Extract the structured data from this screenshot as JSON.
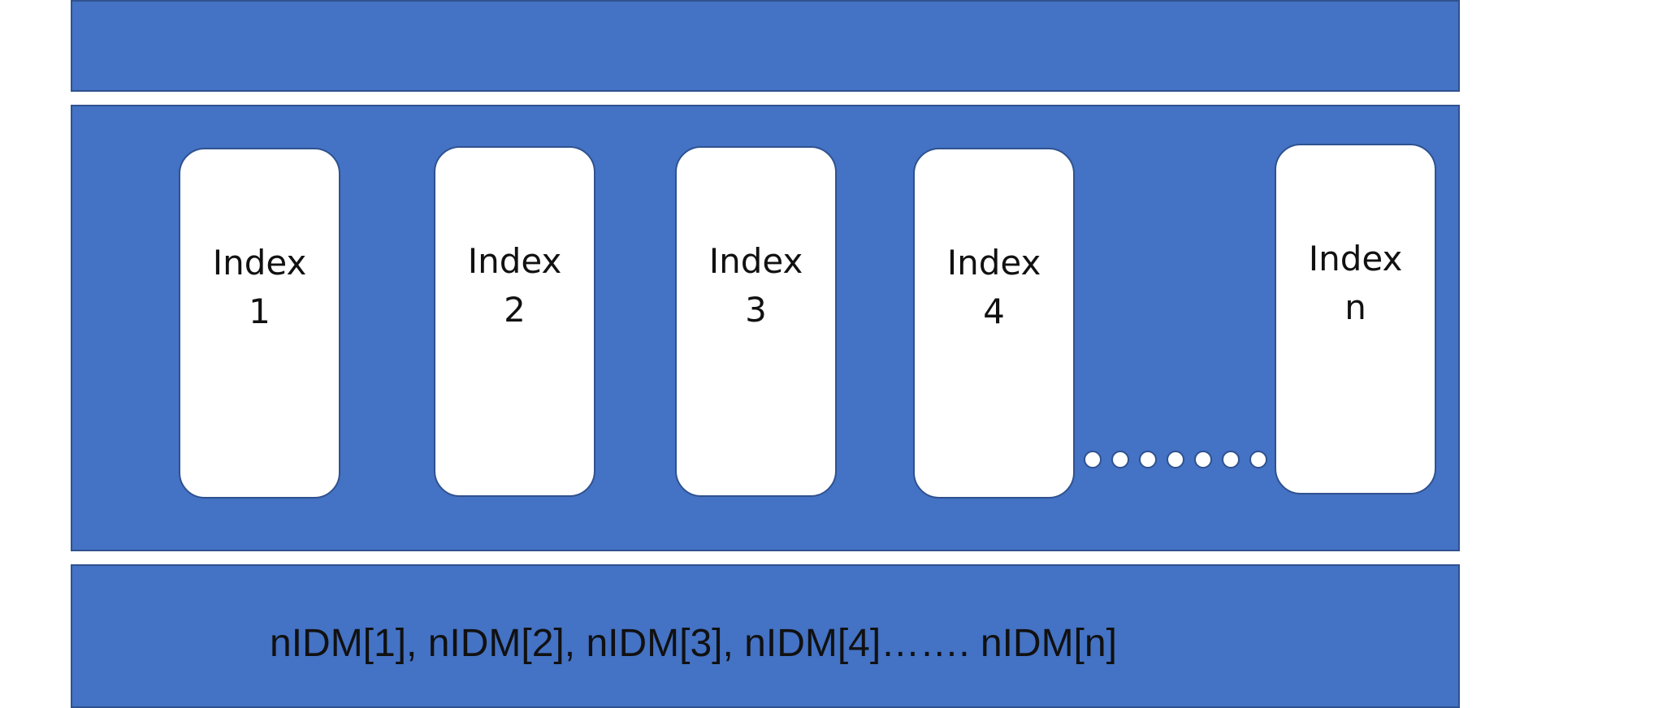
{
  "boxes": [
    {
      "label": "Index",
      "number": "1"
    },
    {
      "label": "Index",
      "number": "2"
    },
    {
      "label": "Index",
      "number": "3"
    },
    {
      "label": "Index",
      "number": "4"
    },
    {
      "label": "Index",
      "number": "n"
    }
  ],
  "caption": "nIDM[1], nIDM[2], nIDM[3], nIDM[4]……. nIDM[n]",
  "colors": {
    "band_fill": "#4472c4",
    "outline": "#2f528f",
    "box_fill": "#ffffff",
    "text": "#111111"
  }
}
